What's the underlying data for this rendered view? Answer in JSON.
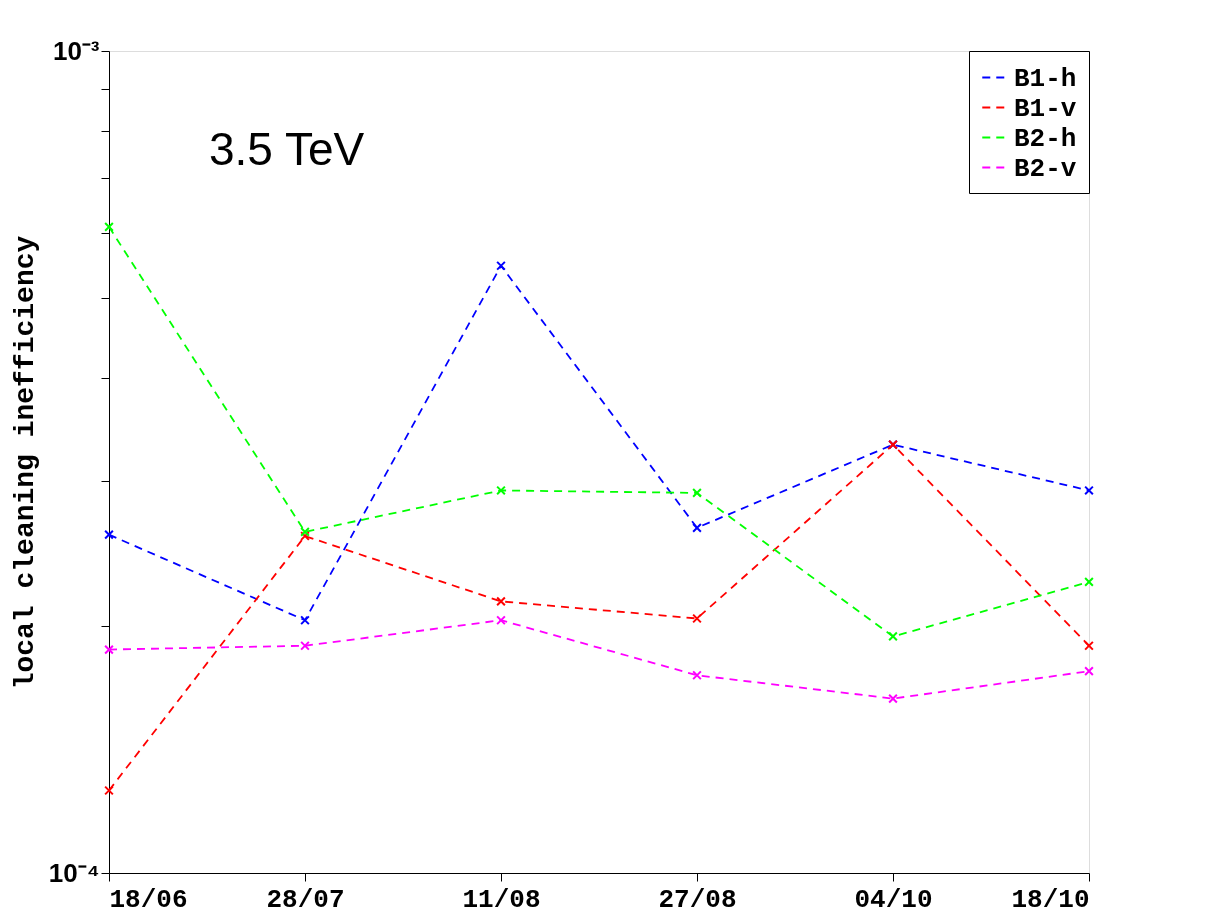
{
  "chart_data": {
    "type": "line",
    "ylabel": "local cleaning inefficiency",
    "log": true,
    "ylim": [
      0.0001,
      0.001
    ],
    "yticks": [
      {
        "value": 0.0001,
        "label": "10⁻⁴"
      },
      {
        "value": 0.0002,
        "label": null
      },
      {
        "value": 0.0003,
        "label": null
      },
      {
        "value": 0.0004,
        "label": null
      },
      {
        "value": 0.0005,
        "label": null
      },
      {
        "value": 0.0006,
        "label": null
      },
      {
        "value": 0.0007,
        "label": null
      },
      {
        "value": 0.0008,
        "label": null
      },
      {
        "value": 0.0009,
        "label": null
      },
      {
        "value": 0.001,
        "label": "10⁻³"
      }
    ],
    "categories": [
      "18/06",
      "28/07",
      "11/08",
      "27/08",
      "04/10",
      "18/10"
    ],
    "series": [
      {
        "name": "B1-h",
        "color": "#0000ff",
        "values": [
          0.000258,
          0.000203,
          0.000548,
          0.000263,
          0.000332,
          0.000292
        ]
      },
      {
        "name": "B1-v",
        "color": "#ff0000",
        "values": [
          0.000126,
          0.000257,
          0.000214,
          0.000204,
          0.000332,
          0.000189
        ]
      },
      {
        "name": "B2-h",
        "color": "#00ff00",
        "values": [
          0.000611,
          0.00026,
          0.000292,
          0.00029,
          0.000194,
          0.000226
        ]
      },
      {
        "name": "B2-v",
        "color": "#ff00ff",
        "values": [
          0.000187,
          0.000189,
          0.000203,
          0.000174,
          0.000163,
          0.000176
        ]
      }
    ],
    "annotations": [
      "3.5 TeV"
    ],
    "legend": "top right",
    "marker": "cross",
    "line_style": "dashed",
    "grid": false
  }
}
